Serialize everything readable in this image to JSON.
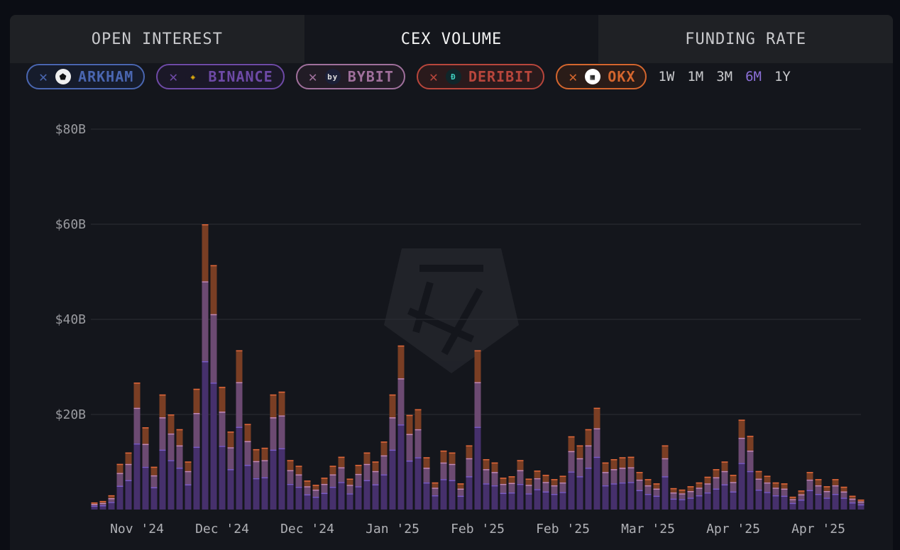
{
  "tabs": [
    {
      "label": "OPEN INTEREST",
      "active": false
    },
    {
      "label": "CEX VOLUME",
      "active": true
    },
    {
      "label": "FUNDING RATE",
      "active": false
    }
  ],
  "filters": [
    {
      "label": "ARKHAM",
      "color": "#4a66b0",
      "bg": "#161c2c",
      "icon": "arkham-logo-icon"
    },
    {
      "label": "BINANCE",
      "color": "#6e4aa6",
      "bg": "#1b1828",
      "icon": "binance-logo-icon"
    },
    {
      "label": "BYBIT",
      "color": "#a0709c",
      "bg": "#221c26",
      "icon": "bybit-logo-icon"
    },
    {
      "label": "DERIBIT",
      "color": "#b8463c",
      "bg": "#2a1a1c",
      "icon": "deribit-logo-icon"
    },
    {
      "label": "OKX",
      "color": "#d4662e",
      "bg": "#2a1c18",
      "icon": "okx-logo-icon"
    }
  ],
  "remove_glyph": "✕",
  "timeframes": [
    {
      "label": "1W"
    },
    {
      "label": "1M"
    },
    {
      "label": "3M"
    },
    {
      "label": "6M",
      "selected": true
    },
    {
      "label": "1Y"
    }
  ],
  "chart_data": {
    "type": "bar",
    "stacked": true,
    "ylim": [
      0,
      80
    ],
    "yticks": [
      "$20B",
      "$40B",
      "$60B",
      "$80B"
    ],
    "ytick_values": [
      20,
      40,
      60,
      80
    ],
    "grid": true,
    "xtick_labels": [
      "Nov '24",
      "Dec '24",
      "Dec '24",
      "Jan '25",
      "Feb '25",
      "Feb '25",
      "Mar '25",
      "Apr '25",
      "Apr '25"
    ],
    "series": [
      {
        "name": "BINANCE",
        "color": "#46306c",
        "cap": "#7a5cc8",
        "values": [
          0.8,
          0.9,
          1.6,
          5.0,
          6.2,
          13.9,
          9.0,
          4.7,
          12.6,
          10.4,
          8.8,
          5.3,
          13.2,
          31.2,
          26.7,
          13.4,
          8.5,
          17.4,
          9.4,
          6.6,
          6.8,
          12.6,
          12.9,
          5.4,
          4.8,
          3.2,
          2.7,
          3.5,
          4.8,
          5.8,
          3.4,
          4.9,
          6.2,
          5.3,
          7.4,
          12.6,
          17.9,
          10.3,
          11.0,
          5.7,
          3.0,
          6.4,
          6.2,
          2.9,
          7.0,
          17.4,
          5.5,
          5.1,
          3.5,
          3.6,
          5.4,
          3.4,
          4.3,
          3.8,
          3.3,
          3.7,
          8.0,
          7.0,
          8.8,
          11.1,
          5.1,
          5.5,
          5.7,
          5.8,
          4.1,
          3.3,
          2.9,
          7.0,
          2.3,
          2.2,
          2.5,
          3.0,
          3.6,
          4.4,
          5.3,
          3.8,
          9.8,
          8.1,
          4.2,
          3.7,
          3.0,
          2.9,
          1.4,
          2.1,
          4.1,
          3.3,
          2.5,
          3.3,
          2.5,
          1.5,
          1.1
        ]
      },
      {
        "name": "BYBIT",
        "color": "#6c4a72",
        "cap": "#c48ab8",
        "values": [
          0.4,
          0.5,
          0.8,
          2.7,
          3.4,
          7.5,
          4.8,
          2.5,
          6.8,
          5.6,
          4.7,
          2.8,
          7.1,
          16.8,
          14.4,
          7.2,
          4.6,
          9.4,
          5.0,
          3.6,
          3.6,
          6.8,
          6.9,
          2.9,
          2.6,
          1.7,
          1.5,
          1.9,
          2.6,
          3.1,
          1.8,
          2.6,
          3.4,
          2.8,
          4.0,
          6.8,
          9.7,
          5.6,
          5.9,
          3.1,
          1.6,
          3.5,
          3.4,
          1.5,
          3.8,
          9.4,
          3.0,
          2.8,
          1.9,
          2.0,
          2.9,
          1.8,
          2.3,
          2.0,
          1.8,
          2.0,
          4.3,
          3.8,
          4.7,
          6.0,
          2.8,
          3.0,
          3.1,
          3.1,
          2.2,
          1.8,
          1.5,
          3.8,
          1.3,
          1.2,
          1.4,
          1.6,
          1.9,
          2.4,
          2.8,
          2.0,
          5.3,
          4.3,
          2.3,
          2.0,
          1.6,
          1.5,
          0.8,
          1.1,
          2.2,
          1.8,
          1.4,
          1.8,
          1.3,
          0.8,
          0.6
        ]
      },
      {
        "name": "OKX",
        "color": "#7a3e24",
        "cap": "#e0673a",
        "values": [
          0.3,
          0.4,
          0.6,
          1.9,
          2.4,
          5.3,
          3.5,
          1.8,
          4.8,
          4.0,
          3.4,
          2.0,
          5.1,
          12.0,
          10.3,
          5.2,
          3.3,
          6.7,
          3.6,
          2.5,
          2.6,
          4.8,
          5.0,
          2.1,
          1.8,
          1.2,
          1.0,
          1.3,
          1.8,
          2.2,
          1.3,
          1.9,
          2.4,
          2.0,
          2.9,
          4.8,
          6.9,
          4.0,
          4.2,
          2.2,
          1.1,
          2.5,
          2.4,
          1.1,
          2.7,
          6.7,
          2.1,
          2.0,
          1.3,
          1.4,
          2.1,
          1.3,
          1.6,
          1.5,
          1.3,
          1.4,
          3.1,
          2.7,
          3.4,
          4.3,
          2.0,
          2.1,
          2.2,
          2.2,
          1.6,
          1.3,
          1.1,
          2.7,
          0.9,
          0.8,
          1.0,
          1.1,
          1.4,
          1.7,
          2.0,
          1.5,
          3.8,
          3.1,
          1.6,
          1.4,
          1.1,
          1.1,
          0.5,
          0.8,
          1.6,
          1.3,
          1.0,
          1.3,
          1.0,
          0.6,
          0.4
        ]
      }
    ]
  }
}
